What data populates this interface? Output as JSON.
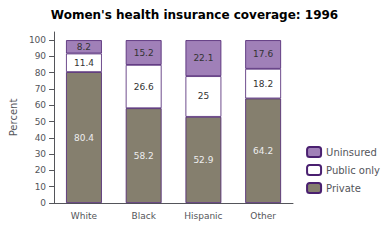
{
  "chart_data": {
    "type": "bar",
    "title": "Women's health insurance coverage: 1996",
    "categories": [
      "White",
      "Black",
      "Hispanic",
      "Other"
    ],
    "series": [
      {
        "name": "Private",
        "color": "#857f6e",
        "values": [
          80.4,
          58.2,
          52.9,
          64.2
        ]
      },
      {
        "name": "Public only",
        "color": "#ffffff",
        "values": [
          11.4,
          26.6,
          25.0,
          18.2
        ]
      },
      {
        "name": "Uninsured",
        "color": "#a080b8",
        "values": [
          8.2,
          15.2,
          22.1,
          17.6
        ]
      }
    ],
    "ylabel": "Percent",
    "ylim": [
      0,
      105
    ],
    "yticks": [
      0,
      10,
      20,
      30,
      40,
      50,
      60,
      70,
      80,
      90,
      100
    ],
    "stacked": true,
    "data_labels": true,
    "grid": false,
    "legend": "lower right"
  }
}
